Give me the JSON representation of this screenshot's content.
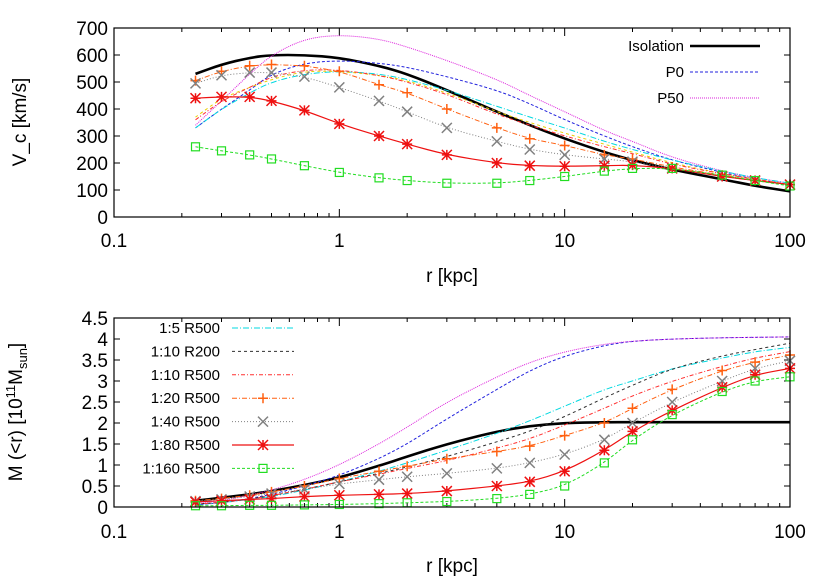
{
  "chart_data": [
    {
      "type": "line",
      "xlabel": "r [kpc]",
      "ylabel": "V_c [km/s]",
      "ylabel_main": "V",
      "ylabel_sub": "c",
      "ylabel_rest": " [km/s]",
      "xscale": "log",
      "xlim": [
        0.1,
        100
      ],
      "ylim": [
        0,
        700
      ],
      "xticks": [
        "0.1",
        "1",
        "10",
        "100"
      ],
      "yticks": [
        "0",
        "100",
        "200",
        "300",
        "400",
        "500",
        "600",
        "700"
      ],
      "grid": false,
      "legend": "top-right",
      "legend_entries": [
        "Isolation",
        "P0",
        "P50"
      ],
      "x": [
        0.23,
        0.3,
        0.4,
        0.5,
        0.7,
        1,
        1.5,
        2,
        3,
        5,
        7,
        10,
        15,
        20,
        30,
        50,
        70,
        100
      ],
      "series": [
        {
          "name": "Isolation",
          "color": "#000000",
          "values": [
            530,
            565,
            590,
            600,
            600,
            590,
            560,
            530,
            470,
            390,
            340,
            290,
            240,
            210,
            175,
            140,
            115,
            95
          ]
        },
        {
          "name": "P0",
          "color": "#2222dd",
          "values": [
            330,
            400,
            470,
            530,
            570,
            580,
            570,
            555,
            520,
            470,
            420,
            360,
            300,
            260,
            210,
            165,
            140,
            120
          ]
        },
        {
          "name": "P50",
          "color": "#dd22dd",
          "values": [
            340,
            430,
            530,
            600,
            660,
            675,
            660,
            630,
            580,
            510,
            450,
            390,
            320,
            280,
            220,
            170,
            145,
            125
          ]
        },
        {
          "name": "1:5  R500",
          "color": "#00d8e0",
          "values": [
            330,
            400,
            460,
            500,
            530,
            540,
            530,
            510,
            470,
            410,
            370,
            330,
            280,
            250,
            210,
            170,
            145,
            125
          ]
        },
        {
          "name": "1:10 R200",
          "color": "#e8d000",
          "values": [
            370,
            440,
            480,
            510,
            540,
            540,
            525,
            505,
            460,
            390,
            350,
            310,
            270,
            240,
            200,
            160,
            140,
            120
          ]
        },
        {
          "name": "1:10 R500",
          "color": "#ff3030",
          "values": [
            360,
            430,
            480,
            520,
            545,
            545,
            525,
            500,
            455,
            380,
            340,
            300,
            260,
            235,
            195,
            160,
            140,
            120
          ]
        },
        {
          "name": "1:20 R500",
          "color": "#ff6010",
          "values": [
            505,
            540,
            560,
            565,
            560,
            540,
            490,
            460,
            400,
            330,
            290,
            265,
            230,
            215,
            185,
            155,
            135,
            120
          ]
        },
        {
          "name": "1:40 R500",
          "color": "#808080",
          "values": [
            495,
            525,
            535,
            535,
            520,
            480,
            430,
            390,
            330,
            280,
            250,
            230,
            215,
            205,
            180,
            150,
            135,
            120
          ]
        },
        {
          "name": "1:80 R500",
          "color": "#ee1111",
          "values": [
            440,
            445,
            445,
            430,
            395,
            345,
            300,
            270,
            230,
            200,
            190,
            188,
            190,
            192,
            180,
            150,
            135,
            120
          ]
        },
        {
          "name": "1:160 R500",
          "color": "#22dd22",
          "values": [
            260,
            245,
            230,
            215,
            190,
            165,
            145,
            135,
            125,
            125,
            135,
            150,
            170,
            180,
            180,
            155,
            135,
            115
          ]
        }
      ]
    },
    {
      "type": "line",
      "xlabel": "r [kpc]",
      "ylabel": "M (<r) [10^11 M_sun]",
      "ylabel_a": "M (<r) [10",
      "ylabel_sup": "11",
      "ylabel_b": "M",
      "ylabel_sub": "sun",
      "ylabel_c": "]",
      "xscale": "log",
      "xlim": [
        0.1,
        100
      ],
      "ylim": [
        0,
        4.5
      ],
      "xticks": [
        "0.1",
        "1",
        "10",
        "100"
      ],
      "yticks": [
        "0",
        "0.5",
        "1",
        "1.5",
        "2",
        "2.5",
        "3",
        "3.5",
        "4",
        "4.5"
      ],
      "grid": false,
      "legend": "top-left",
      "legend_entries": [
        "1:5  R500",
        "1:10 R200",
        "1:10 R500",
        "1:20 R500",
        "1:40 R500",
        "1:80 R500",
        "1:160 R500"
      ],
      "x": [
        0.23,
        0.3,
        0.4,
        0.5,
        0.7,
        1,
        1.5,
        2,
        3,
        5,
        7,
        10,
        15,
        20,
        30,
        50,
        70,
        100
      ],
      "series": [
        {
          "name": "Isolation",
          "color": "#000000",
          "values": [
            0.15,
            0.22,
            0.3,
            0.38,
            0.52,
            0.7,
            0.98,
            1.2,
            1.5,
            1.8,
            1.93,
            2.0,
            2.02,
            2.02,
            2.02,
            2.02,
            2.02,
            2.02
          ]
        },
        {
          "name": "P0",
          "color": "#2222dd",
          "values": [
            0.05,
            0.1,
            0.2,
            0.3,
            0.5,
            0.75,
            1.15,
            1.5,
            2.1,
            2.8,
            3.25,
            3.6,
            3.85,
            3.95,
            4.0,
            4.03,
            4.04,
            4.05
          ]
        },
        {
          "name": "P50",
          "color": "#dd22dd",
          "values": [
            0.08,
            0.15,
            0.28,
            0.4,
            0.65,
            1.0,
            1.5,
            1.9,
            2.5,
            3.1,
            3.45,
            3.7,
            3.88,
            3.95,
            4.0,
            4.03,
            4.04,
            4.05
          ]
        },
        {
          "name": "1:5  R500",
          "color": "#00d8e0",
          "values": [
            0.06,
            0.1,
            0.18,
            0.25,
            0.4,
            0.6,
            0.85,
            1.05,
            1.35,
            1.75,
            2.05,
            2.4,
            2.8,
            3.0,
            3.3,
            3.55,
            3.7,
            3.8
          ]
        },
        {
          "name": "1:10 R200",
          "color": "#303030",
          "values": [
            0.07,
            0.11,
            0.19,
            0.27,
            0.42,
            0.6,
            0.8,
            0.95,
            1.2,
            1.55,
            1.8,
            2.15,
            2.6,
            2.9,
            3.3,
            3.6,
            3.75,
            3.9
          ]
        },
        {
          "name": "1:10 R500",
          "color": "#ff3030",
          "values": [
            0.07,
            0.11,
            0.19,
            0.27,
            0.42,
            0.6,
            0.78,
            0.92,
            1.1,
            1.4,
            1.62,
            1.95,
            2.35,
            2.65,
            3.0,
            3.35,
            3.55,
            3.7
          ]
        },
        {
          "name": "1:20 R500",
          "color": "#ff6010",
          "values": [
            0.15,
            0.2,
            0.28,
            0.36,
            0.5,
            0.68,
            0.85,
            0.97,
            1.15,
            1.32,
            1.45,
            1.7,
            2.0,
            2.35,
            2.8,
            3.25,
            3.45,
            3.62
          ]
        },
        {
          "name": "1:40 R500",
          "color": "#808080",
          "values": [
            0.14,
            0.18,
            0.25,
            0.32,
            0.42,
            0.55,
            0.65,
            0.72,
            0.8,
            0.92,
            1.05,
            1.25,
            1.6,
            2.0,
            2.5,
            3.0,
            3.3,
            3.48
          ]
        },
        {
          "name": "1:80 R500",
          "color": "#ee1111",
          "values": [
            0.12,
            0.15,
            0.18,
            0.2,
            0.25,
            0.28,
            0.3,
            0.32,
            0.38,
            0.5,
            0.6,
            0.85,
            1.35,
            1.8,
            2.3,
            2.85,
            3.15,
            3.3
          ]
        },
        {
          "name": "1:160 R500",
          "color": "#22dd22",
          "values": [
            0.03,
            0.03,
            0.04,
            0.04,
            0.05,
            0.06,
            0.08,
            0.1,
            0.13,
            0.2,
            0.3,
            0.5,
            1.05,
            1.6,
            2.2,
            2.75,
            3.0,
            3.1
          ]
        }
      ]
    }
  ]
}
